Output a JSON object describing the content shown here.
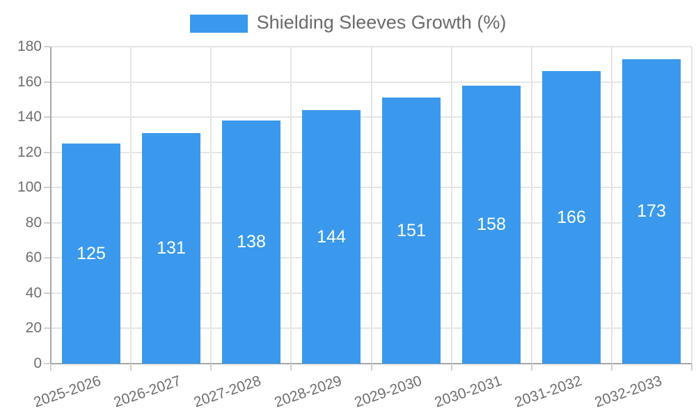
{
  "page": {
    "background": "#ffffff"
  },
  "legend": {
    "label": "Shielding Sleeves Growth (%)"
  },
  "colors": {
    "bar": "#3a99ec",
    "bar_label": "#ffffff",
    "grid": "#e5e5e5",
    "axis": "#a6a6a6",
    "tick": "#cfcfcf",
    "tick_text": "#6e6e6e",
    "legend_text": "#6a6a6a",
    "background": "#ffffff"
  },
  "chart_data": {
    "type": "bar",
    "title": "Shielding Sleeves Growth (%)",
    "series_name": "Shielding Sleeves Growth (%)",
    "categories": [
      "2025-2026",
      "2026-2027",
      "2027-2028",
      "2028-2029",
      "2029-2030",
      "2030-2031",
      "2031-2032",
      "2032-2033"
    ],
    "values": [
      125,
      131,
      138,
      144,
      151,
      158,
      166,
      173
    ],
    "xlabel": "",
    "ylabel": "",
    "ylim": [
      0,
      180
    ],
    "ytick_step": 20,
    "ytick_labels": [
      "0",
      "20",
      "40",
      "60",
      "80",
      "100",
      "120",
      "140",
      "160",
      "180"
    ],
    "grid": true,
    "bar_value_labels_visible": true,
    "legend_position": "top-center",
    "x_label_rotation_deg": -19
  }
}
